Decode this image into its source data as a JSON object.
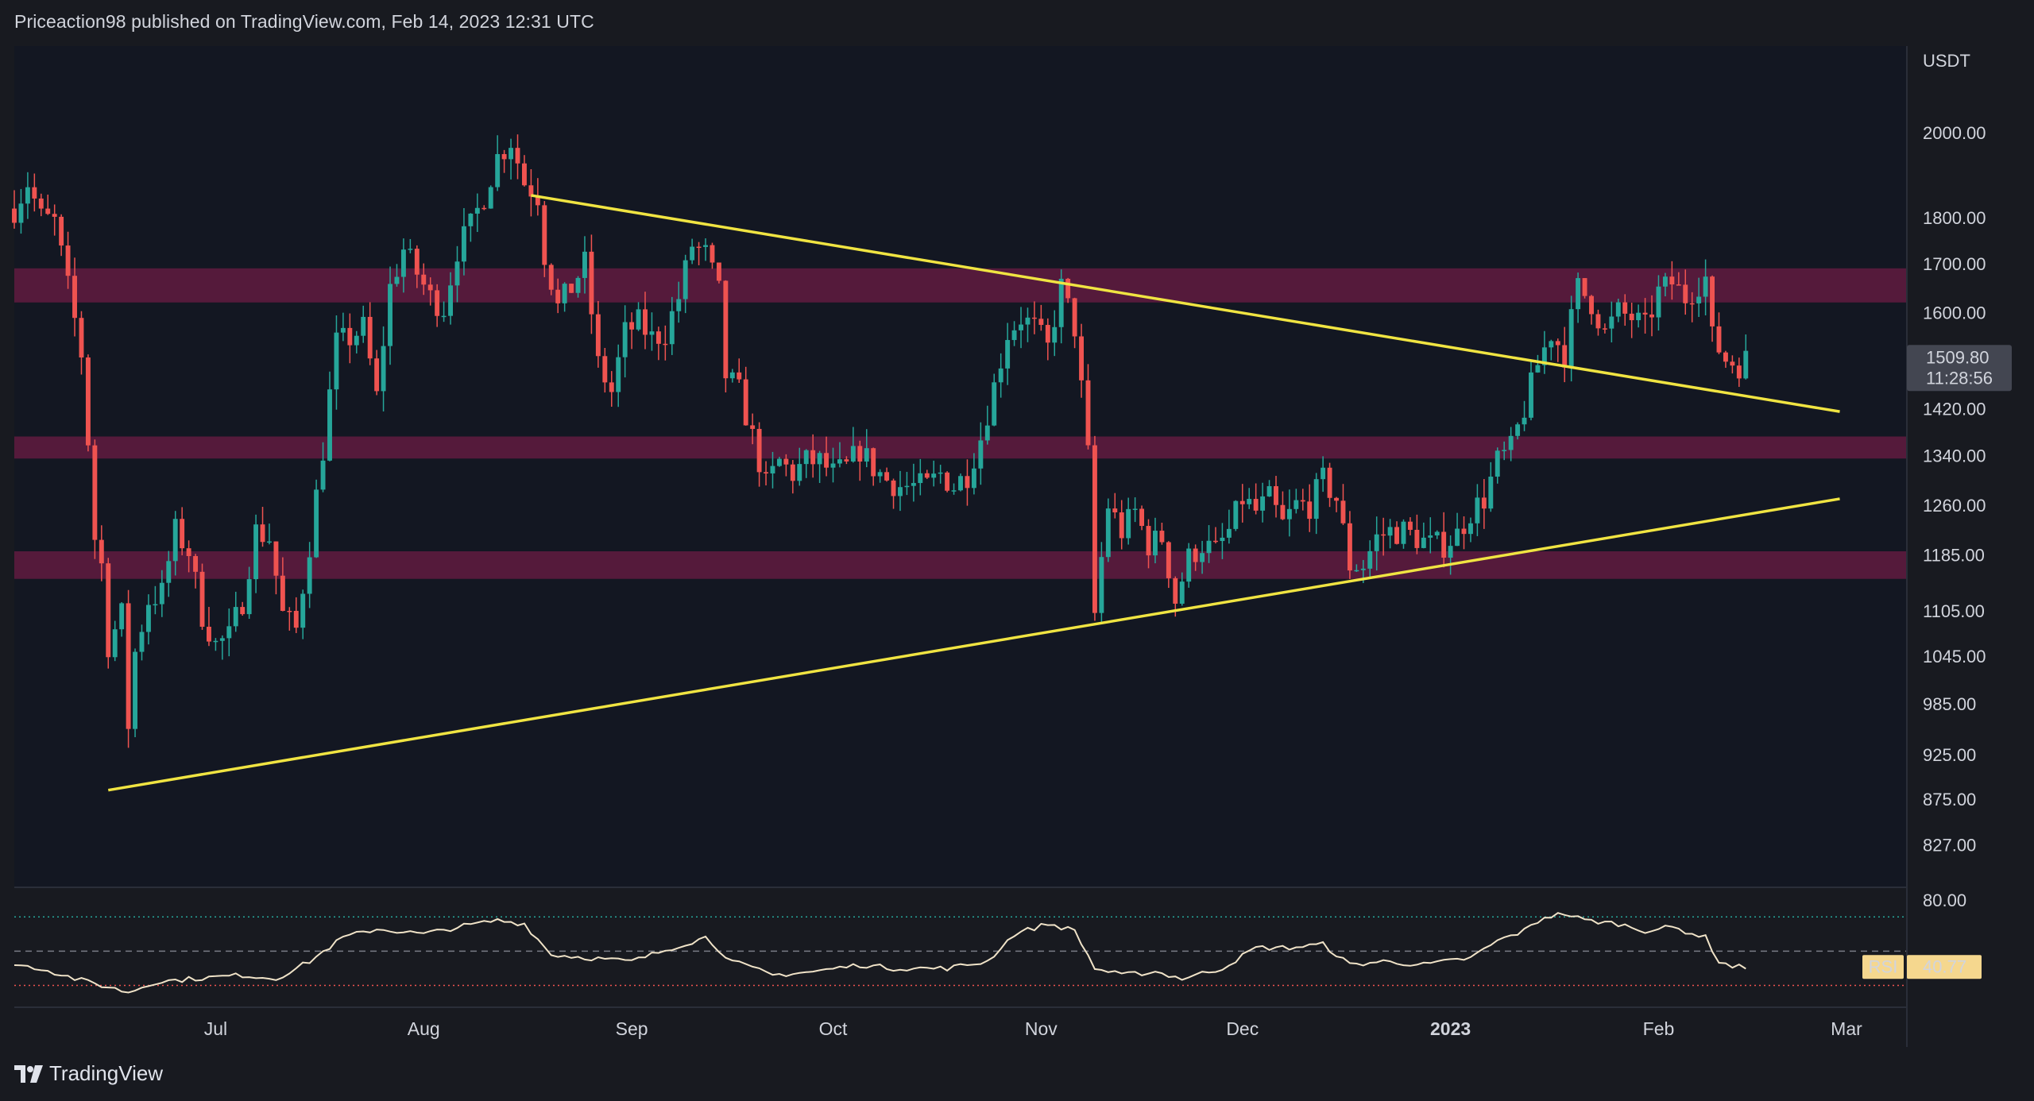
{
  "header": {
    "publisher": "Priceaction98 published on TradingView.com, Feb 14, 2023 12:31 UTC"
  },
  "footer": {
    "brand": "TradingView"
  },
  "chart_data": {
    "type": "candlestick",
    "interval": "1D",
    "x_start": "2022-06-01",
    "x_end": "2023-03-10",
    "ylim": [
      790,
      2200
    ],
    "y_scale": "log",
    "currency_label": "USDT",
    "y_ticks": [
      "2000.00",
      "1800.00",
      "1700.00",
      "1600.00",
      "1420.00",
      "1340.00",
      "1260.00",
      "1185.00",
      "1105.00",
      "1045.00",
      "985.00",
      "925.00",
      "875.00",
      "827.00"
    ],
    "x_ticks": [
      {
        "label": "Jul",
        "date": "2022-07-01",
        "bold": false
      },
      {
        "label": "Aug",
        "date": "2022-08-01",
        "bold": false
      },
      {
        "label": "Sep",
        "date": "2022-09-01",
        "bold": false
      },
      {
        "label": "Oct",
        "date": "2022-10-01",
        "bold": false
      },
      {
        "label": "Nov",
        "date": "2022-11-01",
        "bold": false
      },
      {
        "label": "Dec",
        "date": "2022-12-01",
        "bold": false
      },
      {
        "label": "2023",
        "date": "2023-01-01",
        "bold": true
      },
      {
        "label": "Feb",
        "date": "2023-02-01",
        "bold": false
      },
      {
        "label": "Mar",
        "date": "2023-03-01",
        "bold": false
      }
    ],
    "last_price": {
      "value": "1509.80",
      "countdown": "11:28:56"
    },
    "zones": [
      {
        "low": 1620,
        "high": 1690
      },
      {
        "low": 1335,
        "high": 1372
      },
      {
        "low": 1150,
        "high": 1190
      }
    ],
    "trendlines": [
      {
        "from": {
          "date": "2022-08-17",
          "price": 1850
        },
        "to": {
          "date": "2023-02-28",
          "price": 1415
        }
      },
      {
        "from": {
          "date": "2022-06-15",
          "price": 885
        },
        "to": {
          "date": "2023-02-28",
          "price": 1270
        }
      }
    ],
    "close_path": [
      [
        "2022-06-01",
        1820
      ],
      [
        "2022-06-03",
        1880
      ],
      [
        "2022-06-05",
        1800
      ],
      [
        "2022-06-07",
        1790
      ],
      [
        "2022-06-09",
        1650
      ],
      [
        "2022-06-11",
        1520
      ],
      [
        "2022-06-13",
        1210
      ],
      [
        "2022-06-14",
        1170
      ],
      [
        "2022-06-15",
        1060
      ],
      [
        "2022-06-17",
        1100
      ],
      [
        "2022-06-18",
        960
      ],
      [
        "2022-06-19",
        1050
      ],
      [
        "2022-06-21",
        1120
      ],
      [
        "2022-06-23",
        1130
      ],
      [
        "2022-06-25",
        1220
      ],
      [
        "2022-06-27",
        1190
      ],
      [
        "2022-06-29",
        1100
      ],
      [
        "2022-07-01",
        1060
      ],
      [
        "2022-07-03",
        1070
      ],
      [
        "2022-07-05",
        1120
      ],
      [
        "2022-07-07",
        1220
      ],
      [
        "2022-07-09",
        1210
      ],
      [
        "2022-07-11",
        1100
      ],
      [
        "2022-07-13",
        1080
      ],
      [
        "2022-07-15",
        1200
      ],
      [
        "2022-07-17",
        1350
      ],
      [
        "2022-07-19",
        1540
      ],
      [
        "2022-07-21",
        1550
      ],
      [
        "2022-07-23",
        1570
      ],
      [
        "2022-07-25",
        1440
      ],
      [
        "2022-07-27",
        1650
      ],
      [
        "2022-07-29",
        1730
      ],
      [
        "2022-07-31",
        1680
      ],
      [
        "2022-08-02",
        1630
      ],
      [
        "2022-08-04",
        1610
      ],
      [
        "2022-08-06",
        1730
      ],
      [
        "2022-08-08",
        1780
      ],
      [
        "2022-08-10",
        1850
      ],
      [
        "2022-08-12",
        1940
      ],
      [
        "2022-08-14",
        1980
      ],
      [
        "2022-08-16",
        1880
      ],
      [
        "2022-08-18",
        1850
      ],
      [
        "2022-08-19",
        1720
      ],
      [
        "2022-08-21",
        1610
      ],
      [
        "2022-08-23",
        1650
      ],
      [
        "2022-08-25",
        1700
      ],
      [
        "2022-08-27",
        1500
      ],
      [
        "2022-08-29",
        1450
      ],
      [
        "2022-08-31",
        1560
      ],
      [
        "2022-09-02",
        1580
      ],
      [
        "2022-09-04",
        1550
      ],
      [
        "2022-09-06",
        1560
      ],
      [
        "2022-09-08",
        1630
      ],
      [
        "2022-09-10",
        1740
      ],
      [
        "2022-09-12",
        1720
      ],
      [
        "2022-09-14",
        1640
      ],
      [
        "2022-09-15",
        1480
      ],
      [
        "2022-09-17",
        1450
      ],
      [
        "2022-09-19",
        1370
      ],
      [
        "2022-09-21",
        1290
      ],
      [
        "2022-09-23",
        1330
      ],
      [
        "2022-09-25",
        1310
      ],
      [
        "2022-09-27",
        1330
      ],
      [
        "2022-09-29",
        1330
      ],
      [
        "2022-10-01",
        1310
      ],
      [
        "2022-10-03",
        1320
      ],
      [
        "2022-10-05",
        1350
      ],
      [
        "2022-10-07",
        1320
      ],
      [
        "2022-10-09",
        1300
      ],
      [
        "2022-10-11",
        1290
      ],
      [
        "2022-10-13",
        1290
      ],
      [
        "2022-10-15",
        1290
      ],
      [
        "2022-10-17",
        1310
      ],
      [
        "2022-10-19",
        1290
      ],
      [
        "2022-10-21",
        1310
      ],
      [
        "2022-10-23",
        1370
      ],
      [
        "2022-10-25",
        1460
      ],
      [
        "2022-10-27",
        1560
      ],
      [
        "2022-10-29",
        1590
      ],
      [
        "2022-10-31",
        1570
      ],
      [
        "2022-11-02",
        1530
      ],
      [
        "2022-11-04",
        1650
      ],
      [
        "2022-11-06",
        1570
      ],
      [
        "2022-11-08",
        1340
      ],
      [
        "2022-11-09",
        1100
      ],
      [
        "2022-11-11",
        1260
      ],
      [
        "2022-11-13",
        1220
      ],
      [
        "2022-11-15",
        1250
      ],
      [
        "2022-11-17",
        1200
      ],
      [
        "2022-11-19",
        1210
      ],
      [
        "2022-11-21",
        1120
      ],
      [
        "2022-11-23",
        1180
      ],
      [
        "2022-11-25",
        1200
      ],
      [
        "2022-11-27",
        1190
      ],
      [
        "2022-11-29",
        1220
      ],
      [
        "2022-12-01",
        1270
      ],
      [
        "2022-12-03",
        1250
      ],
      [
        "2022-12-05",
        1270
      ],
      [
        "2022-12-07",
        1230
      ],
      [
        "2022-12-09",
        1260
      ],
      [
        "2022-12-11",
        1260
      ],
      [
        "2022-12-13",
        1300
      ],
      [
        "2022-12-15",
        1270
      ],
      [
        "2022-12-17",
        1170
      ],
      [
        "2022-12-19",
        1170
      ],
      [
        "2022-12-21",
        1210
      ],
      [
        "2022-12-23",
        1220
      ],
      [
        "2022-12-25",
        1220
      ],
      [
        "2022-12-27",
        1210
      ],
      [
        "2022-12-29",
        1200
      ],
      [
        "2022-12-31",
        1200
      ],
      [
        "2023-01-02",
        1215
      ],
      [
        "2023-01-04",
        1250
      ],
      [
        "2023-01-06",
        1270
      ],
      [
        "2023-01-08",
        1330
      ],
      [
        "2023-01-10",
        1350
      ],
      [
        "2023-01-12",
        1420
      ],
      [
        "2023-01-14",
        1500
      ],
      [
        "2023-01-16",
        1560
      ],
      [
        "2023-01-18",
        1520
      ],
      [
        "2023-01-20",
        1650
      ],
      [
        "2023-01-22",
        1620
      ],
      [
        "2023-01-24",
        1560
      ],
      [
        "2023-01-26",
        1600
      ],
      [
        "2023-01-28",
        1590
      ],
      [
        "2023-01-30",
        1570
      ],
      [
        "2023-02-01",
        1640
      ],
      [
        "2023-02-03",
        1660
      ],
      [
        "2023-02-05",
        1630
      ],
      [
        "2023-02-07",
        1660
      ],
      [
        "2023-02-08",
        1670
      ],
      [
        "2023-02-09",
        1550
      ],
      [
        "2023-02-11",
        1510
      ],
      [
        "2023-02-13",
        1500
      ],
      [
        "2023-02-14",
        1509.8
      ]
    ],
    "rsi": {
      "label": "RSI",
      "last_value": "40.77",
      "ylim": [
        20,
        85
      ],
      "y_ticks": [
        "80.00"
      ],
      "upper_band": 70,
      "middle": 50,
      "lower_band": 30,
      "path": [
        [
          "2022-06-01",
          42
        ],
        [
          "2022-06-05",
          40
        ],
        [
          "2022-06-10",
          34
        ],
        [
          "2022-06-14",
          30
        ],
        [
          "2022-06-18",
          26
        ],
        [
          "2022-06-22",
          32
        ],
        [
          "2022-06-28",
          34
        ],
        [
          "2022-07-05",
          36
        ],
        [
          "2022-07-10",
          34
        ],
        [
          "2022-07-15",
          44
        ],
        [
          "2022-07-20",
          58
        ],
        [
          "2022-07-25",
          63
        ],
        [
          "2022-08-01",
          60
        ],
        [
          "2022-08-06",
          64
        ],
        [
          "2022-08-12",
          68
        ],
        [
          "2022-08-16",
          66
        ],
        [
          "2022-08-20",
          48
        ],
        [
          "2022-08-26",
          46
        ],
        [
          "2022-09-01",
          44
        ],
        [
          "2022-09-07",
          52
        ],
        [
          "2022-09-12",
          58
        ],
        [
          "2022-09-16",
          44
        ],
        [
          "2022-09-22",
          36
        ],
        [
          "2022-09-28",
          38
        ],
        [
          "2022-10-05",
          42
        ],
        [
          "2022-10-10",
          40
        ],
        [
          "2022-10-18",
          40
        ],
        [
          "2022-10-24",
          44
        ],
        [
          "2022-10-28",
          60
        ],
        [
          "2022-11-02",
          66
        ],
        [
          "2022-11-06",
          62
        ],
        [
          "2022-11-09",
          40
        ],
        [
          "2022-11-13",
          36
        ],
        [
          "2022-11-18",
          38
        ],
        [
          "2022-11-22",
          34
        ],
        [
          "2022-11-28",
          40
        ],
        [
          "2022-12-03",
          52
        ],
        [
          "2022-12-08",
          52
        ],
        [
          "2022-12-13",
          54
        ],
        [
          "2022-12-17",
          42
        ],
        [
          "2022-12-22",
          44
        ],
        [
          "2022-12-28",
          42
        ],
        [
          "2023-01-04",
          46
        ],
        [
          "2023-01-08",
          56
        ],
        [
          "2023-01-12",
          62
        ],
        [
          "2023-01-15",
          70
        ],
        [
          "2023-01-18",
          72
        ],
        [
          "2023-01-21",
          68
        ],
        [
          "2023-01-26",
          66
        ],
        [
          "2023-01-30",
          62
        ],
        [
          "2023-02-03",
          64
        ],
        [
          "2023-02-08",
          58
        ],
        [
          "2023-02-10",
          44
        ],
        [
          "2023-02-12",
          41
        ],
        [
          "2023-02-14",
          40.77
        ]
      ]
    },
    "colors": {
      "up": "#26a69a",
      "down": "#ef5350",
      "zone": "rgba(140,30,80,0.55)",
      "trendline": "#f0e442",
      "rsi_line": "#f0e3c8",
      "upper_band": "#26a69a",
      "lower_band": "#ef5350",
      "price_tag": "#434651",
      "rsi_tag": "#f5d78e"
    }
  }
}
